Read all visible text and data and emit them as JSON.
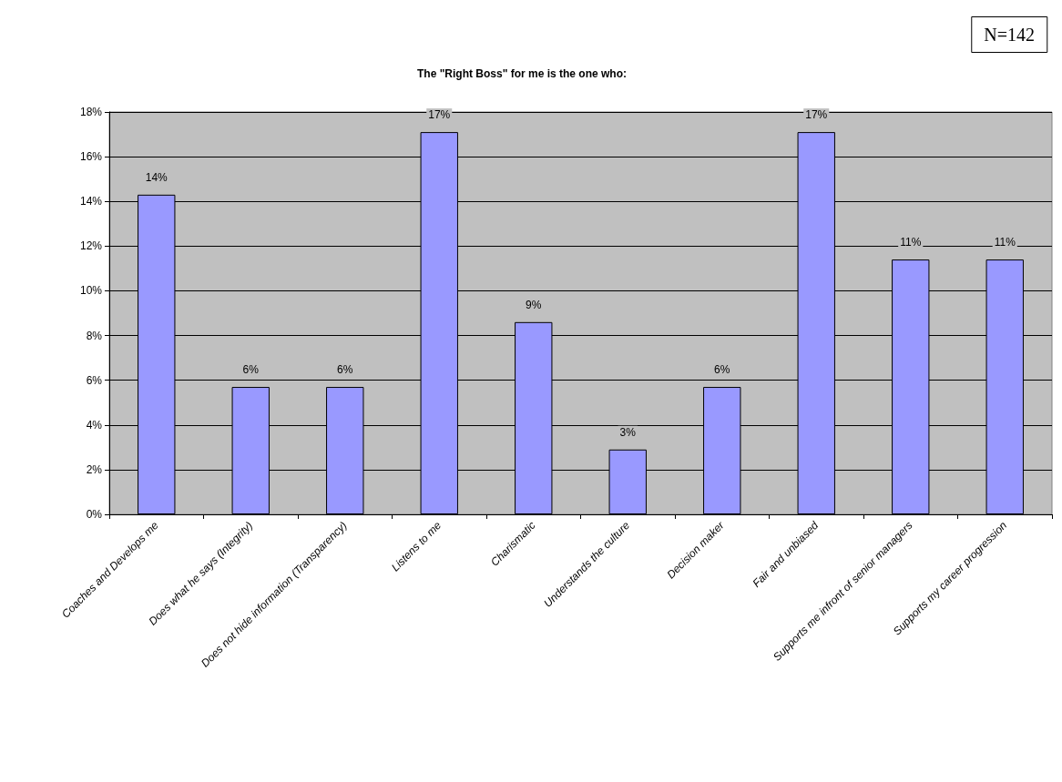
{
  "chart_data": {
    "type": "bar",
    "title": "The \"Right Boss\" for me is the one who:",
    "annotations": [
      "N=142"
    ],
    "categories": [
      "Coaches and Develops me",
      "Does what he says (Integrity)",
      "Does not hide information (Transparency)",
      "Listens to me",
      "Charismatic",
      "Understands the culture",
      "Decision maker",
      "Fair and unbiased",
      "Supports me infront of senior managers",
      "Supports my career progression"
    ],
    "values": [
      14.3,
      5.7,
      5.7,
      17.1,
      8.6,
      2.9,
      5.7,
      17.1,
      11.4,
      11.4
    ],
    "value_labels": [
      "14%",
      "6%",
      "6%",
      "17%",
      "9%",
      "3%",
      "6%",
      "17%",
      "11%",
      "11%"
    ],
    "color": "#9999ff",
    "ylim": [
      0,
      18
    ],
    "yticks": [
      {
        "value": 0,
        "label": "0%"
      },
      {
        "value": 2,
        "label": "2%"
      },
      {
        "value": 4,
        "label": "4%"
      },
      {
        "value": 6,
        "label": "6%"
      },
      {
        "value": 8,
        "label": "8%"
      },
      {
        "value": 10,
        "label": "10%"
      },
      {
        "value": 12,
        "label": "12%"
      },
      {
        "value": 14,
        "label": "14%"
      },
      {
        "value": 16,
        "label": "16%"
      },
      {
        "value": 18,
        "label": "18%"
      }
    ],
    "grid": "y"
  }
}
